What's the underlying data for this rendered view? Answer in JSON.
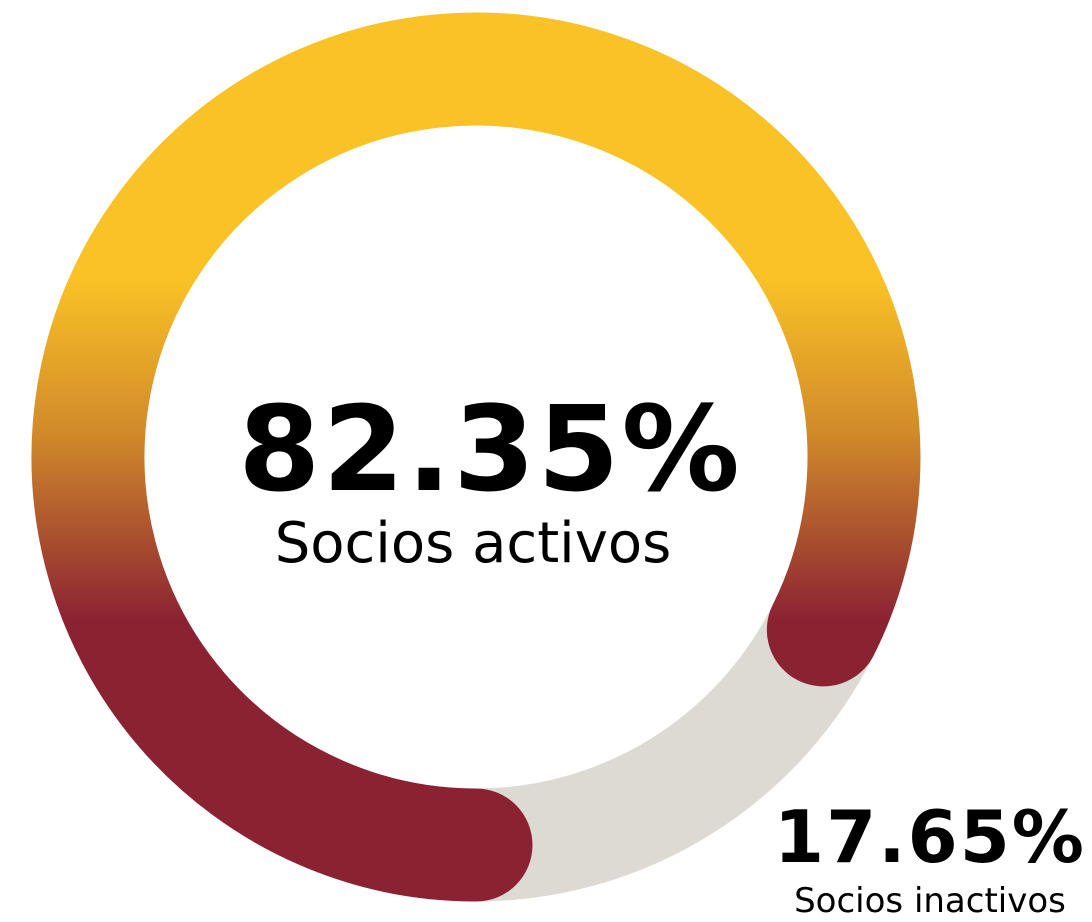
{
  "chart_data": {
    "type": "donut",
    "categories": [
      "Socios activos",
      "Socios inactivos"
    ],
    "values": [
      82.35,
      17.65
    ],
    "value_labels": [
      "82.35%",
      "17.65%"
    ],
    "colors": [
      "#f9c226",
      "#dddad3"
    ],
    "gradient_colors": [
      "#f9c226",
      "#d18a2a",
      "#8b2232"
    ]
  }
}
